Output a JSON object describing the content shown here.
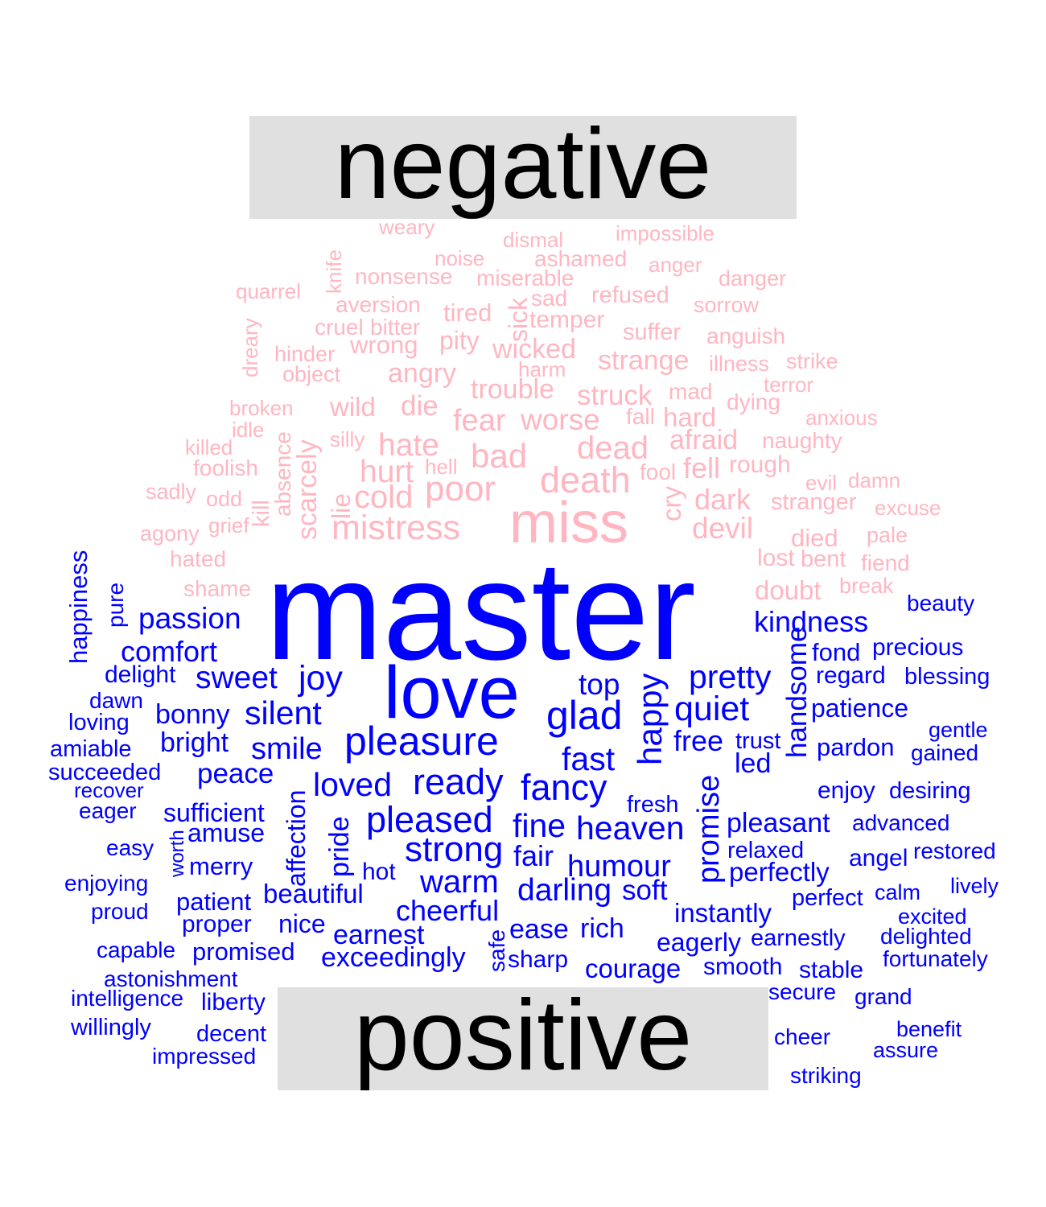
{
  "colors": {
    "negative": "#ffb6c1",
    "positive": "#0000ff",
    "label_box": "#e0e0e0"
  },
  "labels": {
    "negative": "negative",
    "positive": "positive"
  },
  "words": {
    "negative": [
      "weary",
      "dismal",
      "impossible",
      "noise",
      "ashamed",
      "anger",
      "knife",
      "nonsense",
      "miserable",
      "danger",
      "quarrel",
      "aversion",
      "sad",
      "refused",
      "sorrow",
      "sick",
      "tired",
      "temper",
      "dreary",
      "cruel",
      "bitter",
      "suffer",
      "anguish",
      "wrong",
      "pity",
      "wicked",
      "hinder",
      "strange",
      "illness",
      "strike",
      "object",
      "angry",
      "harm",
      "terror",
      "trouble",
      "mad",
      "broken",
      "wild",
      "die",
      "struck",
      "dying",
      "idle",
      "fear",
      "worse",
      "fall",
      "hard",
      "anxious",
      "killed",
      "silly",
      "hate",
      "dead",
      "afraid",
      "naughty",
      "absence",
      "scarcely",
      "foolish",
      "hurt",
      "hell",
      "bad",
      "fell",
      "rough",
      "sadly",
      "kill",
      "lie",
      "death",
      "fool",
      "odd",
      "poor",
      "evil",
      "damn",
      "cold",
      "cry",
      "dark",
      "stranger",
      "excuse",
      "miss",
      "grief",
      "mistress",
      "devil",
      "agony",
      "died",
      "pale",
      "hated",
      "lost",
      "bent",
      "fiend",
      "shame",
      "doubt",
      "break"
    ],
    "positive": [
      "master",
      "happiness",
      "pure",
      "beauty",
      "passion",
      "kindness",
      "comfort",
      "precious",
      "fond",
      "delight",
      "handsome",
      "regard",
      "blessing",
      "sweet",
      "joy",
      "top",
      "love",
      "pretty",
      "dawn",
      "happy",
      "bonny",
      "silent",
      "quiet",
      "patience",
      "loving",
      "glad",
      "gentle",
      "bright",
      "amiable",
      "free",
      "trust",
      "pleasure",
      "smile",
      "pardon",
      "gained",
      "fast",
      "led",
      "succeeded",
      "peace",
      "ready",
      "loved",
      "recover",
      "fancy",
      "enjoy",
      "desiring",
      "affection",
      "eager",
      "fresh",
      "sufficient",
      "promise",
      "pleased",
      "fine",
      "heaven",
      "pleasant",
      "advanced",
      "amuse",
      "worth",
      "easy",
      "strong",
      "relaxed",
      "restored",
      "angel",
      "pride",
      "fair",
      "merry",
      "humour",
      "hot",
      "perfectly",
      "enjoying",
      "warm",
      "lively",
      "beautiful",
      "darling",
      "soft",
      "calm",
      "patient",
      "perfect",
      "proud",
      "cheerful",
      "instantly",
      "excited",
      "proper",
      "nice",
      "rich",
      "ease",
      "delighted",
      "safe",
      "earnest",
      "earnestly",
      "eagerly",
      "capable",
      "promised",
      "exceedingly",
      "fortunately",
      "sharp",
      "courage",
      "smooth",
      "stable",
      "astonishment",
      "secure",
      "intelligence",
      "grand",
      "liberty",
      "willingly",
      "benefit",
      "decent",
      "cheer",
      "assure",
      "impressed",
      "striking"
    ]
  }
}
